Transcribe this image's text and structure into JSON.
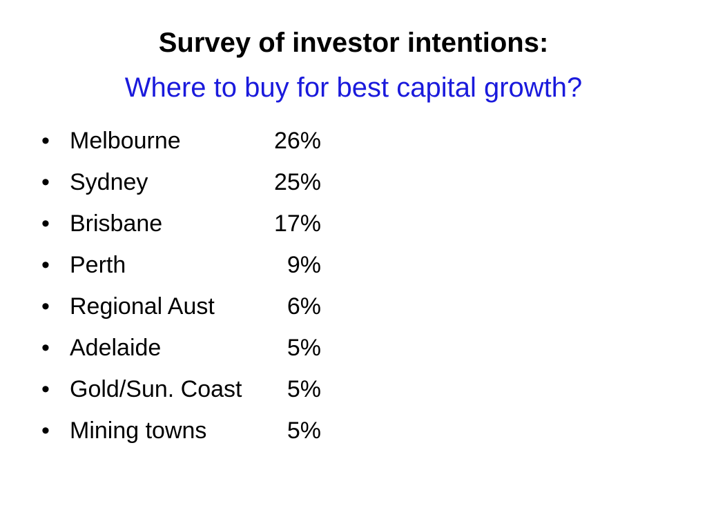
{
  "header": {
    "title": "Survey of investor intentions:",
    "subtitle": "Where to buy for best capital growth?"
  },
  "list": {
    "items": [
      {
        "label": "Melbourne",
        "value": "26%"
      },
      {
        "label": "Sydney",
        "value": "25%"
      },
      {
        "label": "Brisbane",
        "value": "17%"
      },
      {
        "label": "Perth",
        "value": "9%"
      },
      {
        "label": "Regional Aust",
        "value": "6%"
      },
      {
        "label": "Adelaide",
        "value": "5%"
      },
      {
        "label": "Gold/Sun. Coast",
        "value": "5%"
      },
      {
        "label": "Mining towns",
        "value": "5%"
      }
    ]
  }
}
